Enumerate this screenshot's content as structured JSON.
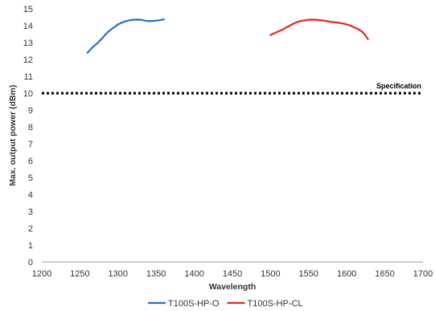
{
  "chart_data": {
    "type": "line",
    "title": "",
    "xlabel": "Wavelength",
    "ylabel": "Max. output power (dBm)",
    "xlim": [
      1200,
      1700
    ],
    "ylim": [
      0,
      15
    ],
    "x_ticks": [
      1200,
      1250,
      1300,
      1350,
      1400,
      1450,
      1500,
      1550,
      1600,
      1650,
      1700
    ],
    "y_ticks": [
      0,
      1,
      2,
      3,
      4,
      5,
      6,
      7,
      8,
      9,
      10,
      11,
      12,
      13,
      14,
      15
    ],
    "grid": false,
    "legend_position": "bottom",
    "series": [
      {
        "name": "T100S-HP-O",
        "color": "#2a6ebb",
        "points": [
          [
            1260,
            12.4
          ],
          [
            1265,
            12.65
          ],
          [
            1270,
            12.85
          ],
          [
            1275,
            13.05
          ],
          [
            1280,
            13.3
          ],
          [
            1285,
            13.55
          ],
          [
            1290,
            13.75
          ],
          [
            1295,
            13.92
          ],
          [
            1300,
            14.08
          ],
          [
            1305,
            14.18
          ],
          [
            1310,
            14.27
          ],
          [
            1315,
            14.32
          ],
          [
            1320,
            14.35
          ],
          [
            1325,
            14.36
          ],
          [
            1330,
            14.35
          ],
          [
            1335,
            14.3
          ],
          [
            1340,
            14.27
          ],
          [
            1345,
            14.28
          ],
          [
            1350,
            14.3
          ],
          [
            1355,
            14.33
          ],
          [
            1360,
            14.38
          ]
        ]
      },
      {
        "name": "T100S-HP-CL",
        "color": "#e8261e",
        "points": [
          [
            1500,
            13.45
          ],
          [
            1505,
            13.55
          ],
          [
            1510,
            13.65
          ],
          [
            1515,
            13.75
          ],
          [
            1520,
            13.88
          ],
          [
            1525,
            14.0
          ],
          [
            1530,
            14.12
          ],
          [
            1535,
            14.22
          ],
          [
            1540,
            14.28
          ],
          [
            1545,
            14.32
          ],
          [
            1550,
            14.35
          ],
          [
            1555,
            14.36
          ],
          [
            1560,
            14.35
          ],
          [
            1565,
            14.33
          ],
          [
            1570,
            14.3
          ],
          [
            1575,
            14.26
          ],
          [
            1580,
            14.22
          ],
          [
            1585,
            14.2
          ],
          [
            1590,
            14.17
          ],
          [
            1595,
            14.13
          ],
          [
            1600,
            14.08
          ],
          [
            1605,
            14.0
          ],
          [
            1610,
            13.9
          ],
          [
            1615,
            13.8
          ],
          [
            1620,
            13.65
          ],
          [
            1625,
            13.4
          ],
          [
            1628,
            13.2
          ]
        ]
      }
    ],
    "reference_line": {
      "label": "Specification",
      "y": 10,
      "color": "#000000",
      "style": "dotted"
    }
  }
}
